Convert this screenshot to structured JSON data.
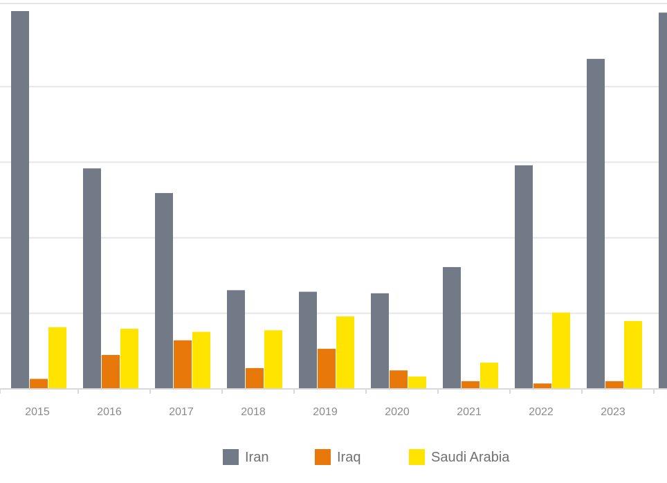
{
  "chart_data": {
    "type": "bar",
    "categories": [
      "2015",
      "2016",
      "2017",
      "2018",
      "2019",
      "2020",
      "2021",
      "2022",
      "2023",
      ""
    ],
    "series": [
      {
        "name": "Iran",
        "color": "#727987",
        "values": [
          245,
          143,
          127,
          64,
          63,
          62,
          79,
          145,
          214,
          244
        ]
      },
      {
        "name": "Iraq",
        "color": "#e8780a",
        "values": [
          6.5,
          22,
          31.5,
          13.5,
          26,
          12,
          5,
          3.5,
          5,
          null
        ]
      },
      {
        "name": "Saudi Arabia",
        "color": "#ffe400",
        "values": [
          40,
          39,
          37,
          38,
          47,
          8,
          17,
          49.5,
          44,
          null
        ]
      }
    ],
    "ylim": [
      0,
      245
    ],
    "grid": true,
    "legend_position": "bottom",
    "title": "",
    "xlabel": "",
    "ylabel": ""
  }
}
